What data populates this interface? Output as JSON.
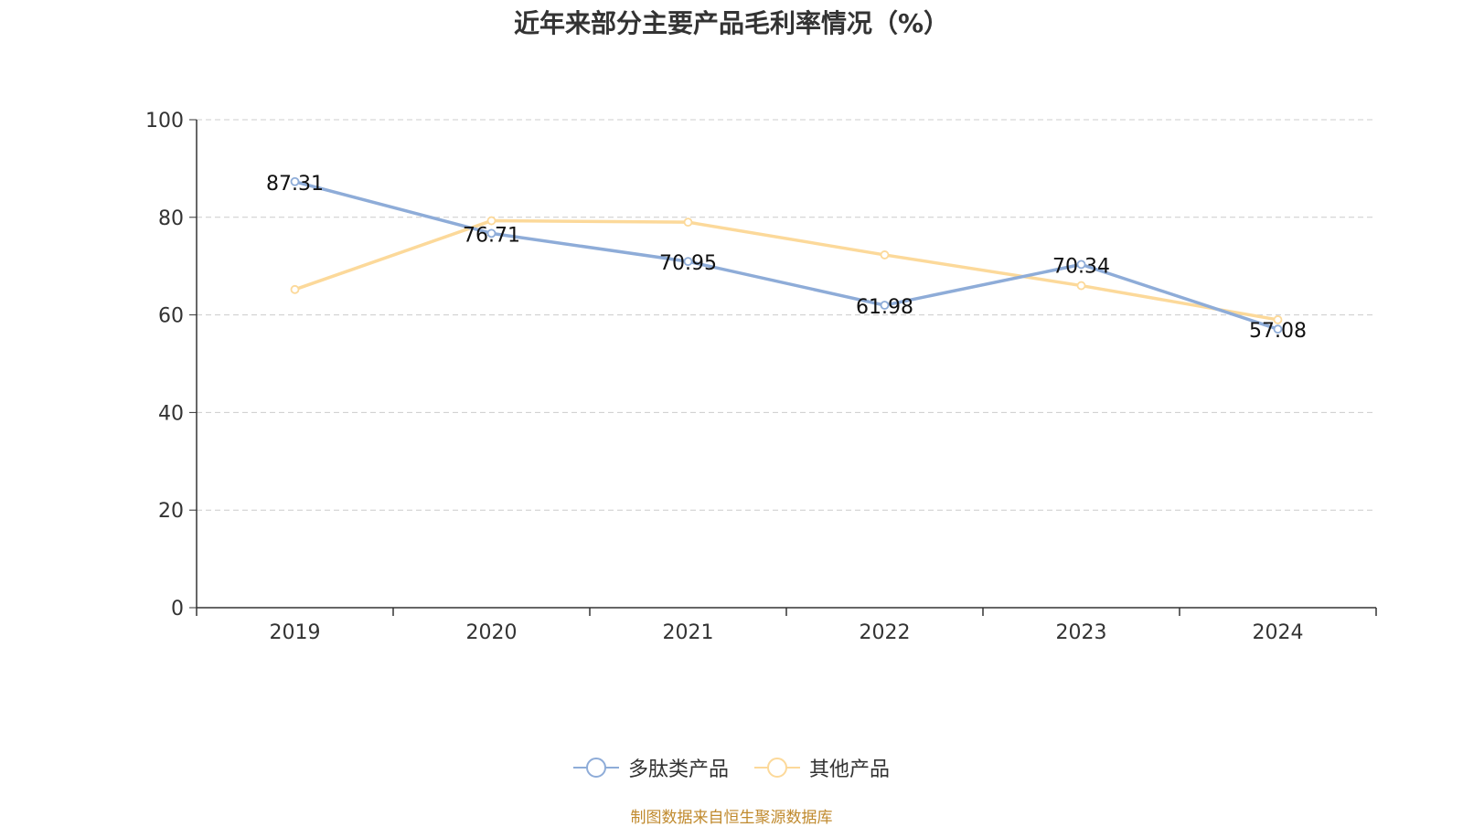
{
  "chart_data": {
    "type": "line",
    "title": "近年来部分主要产品毛利率情况（%）",
    "categories": [
      "2019",
      "2020",
      "2021",
      "2022",
      "2023",
      "2024"
    ],
    "series": [
      {
        "name": "多肽类产品",
        "color": "#8eacd8",
        "values": [
          87.31,
          76.71,
          70.95,
          61.98,
          70.34,
          57.08
        ],
        "labels": [
          "87.31",
          "76.71",
          "70.95",
          "61.98",
          "70.34",
          "57.08"
        ]
      },
      {
        "name": "其他产品",
        "color": "#fcd99a",
        "values": [
          65.2,
          79.3,
          79.0,
          72.3,
          66.0,
          59.0
        ]
      }
    ],
    "ylim": [
      0,
      100
    ],
    "yticks": [
      0,
      20,
      40,
      60,
      80,
      100
    ],
    "ytick_labels": [
      "0",
      "20",
      "40",
      "60",
      "80",
      "100"
    ],
    "xlabel": "",
    "ylabel": "",
    "grid": true,
    "legend_position": "bottom-center"
  },
  "source_text": "制图数据来自恒生聚源数据库"
}
